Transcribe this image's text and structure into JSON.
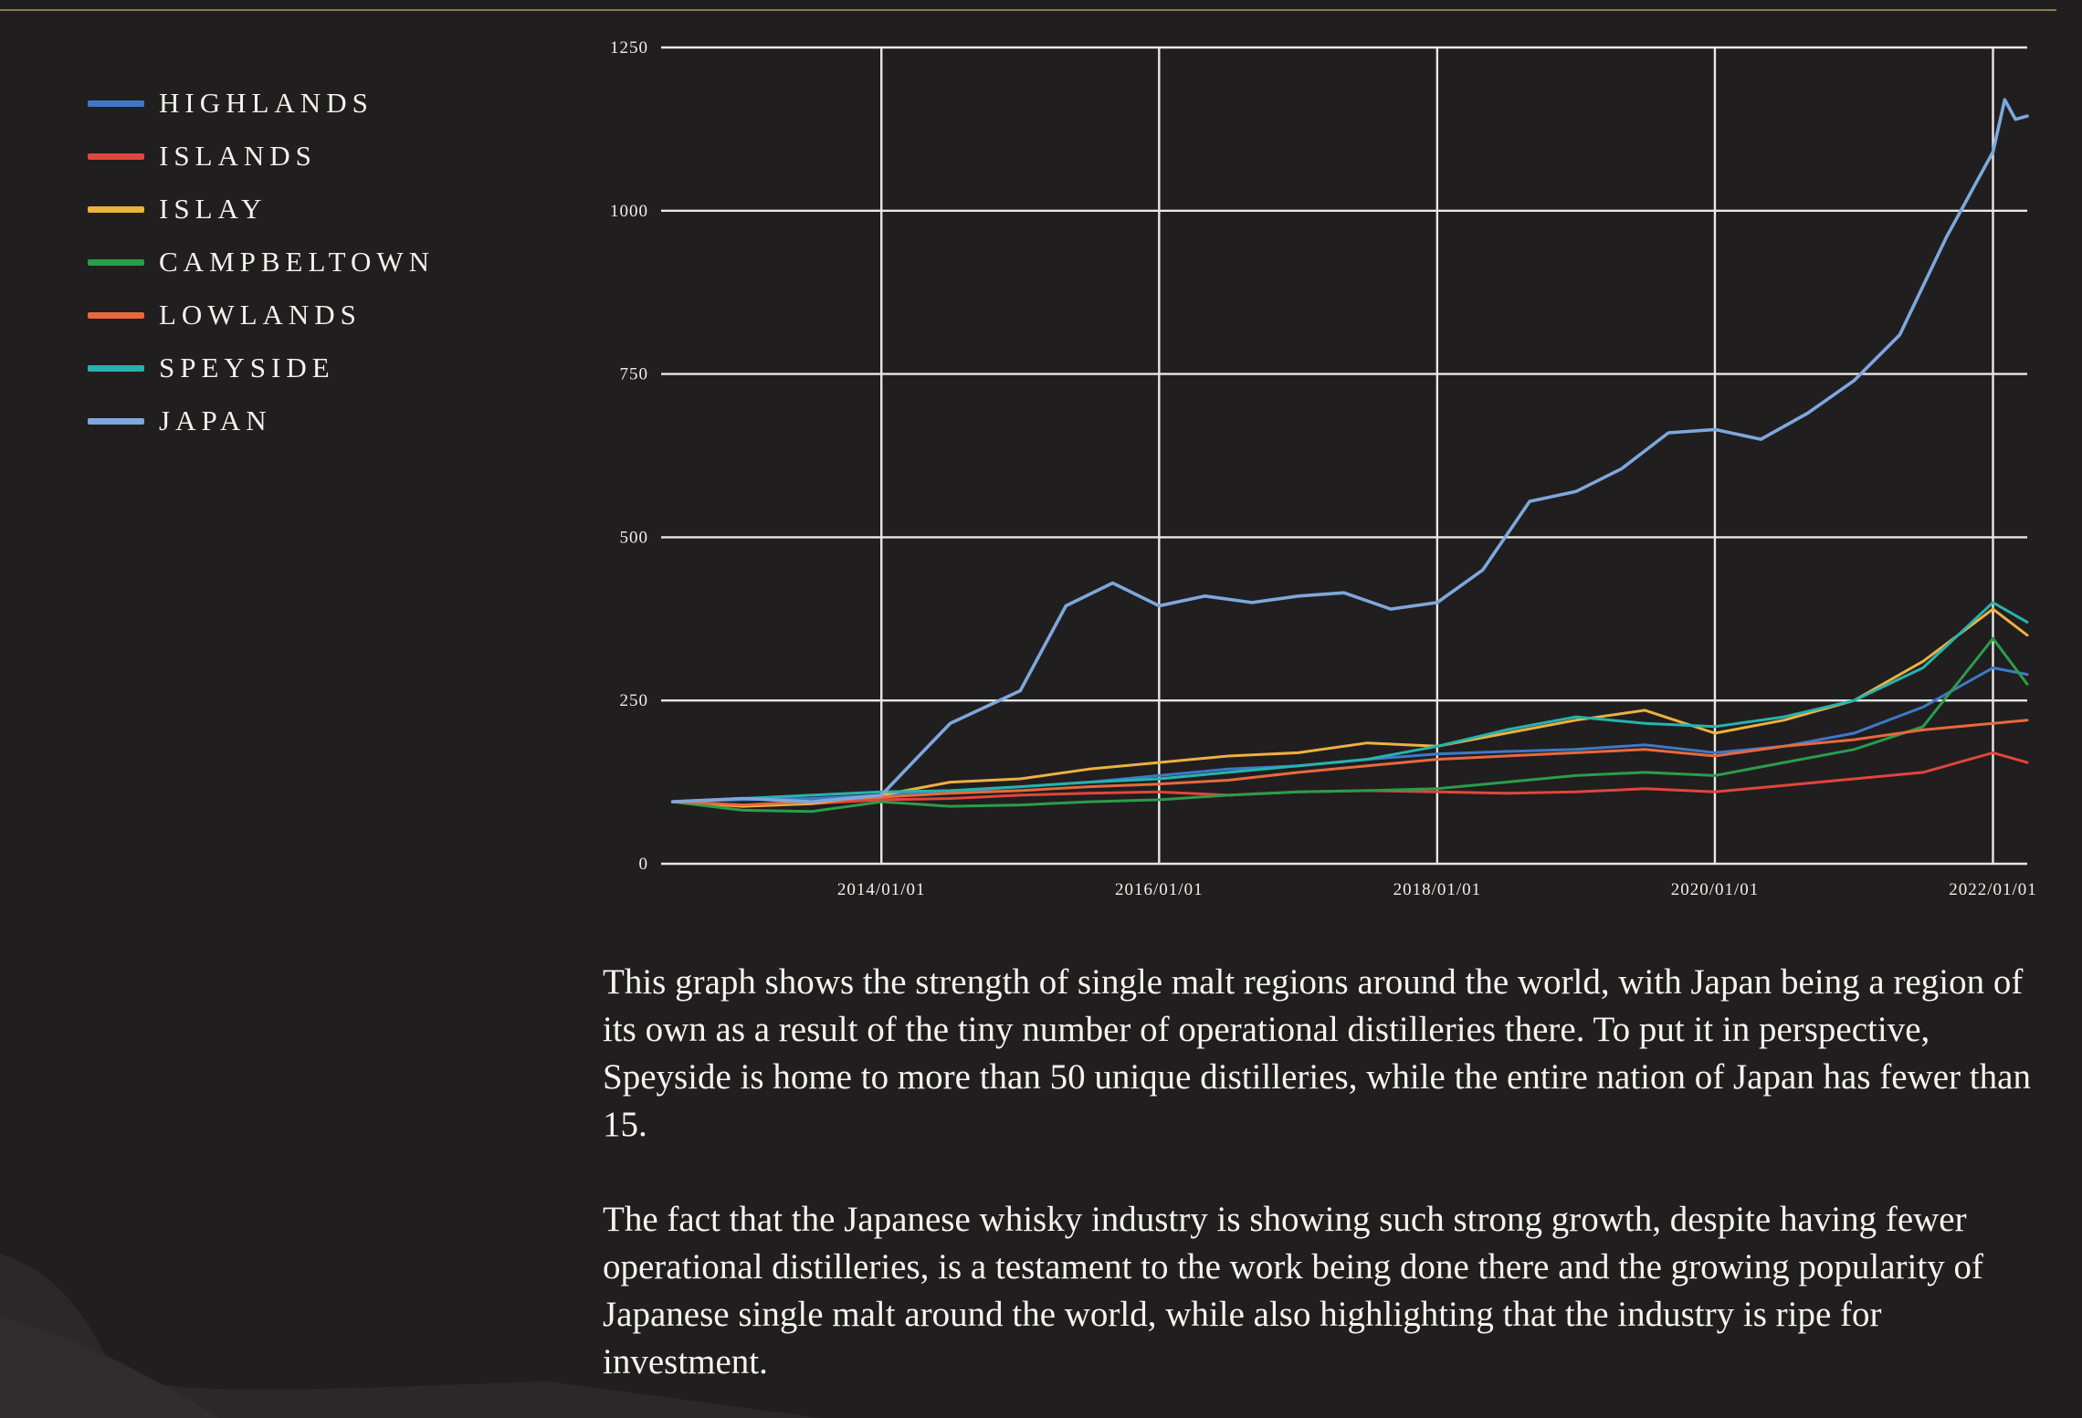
{
  "legend": [
    {
      "label": "HIGHLANDS",
      "color": "#3f78c9"
    },
    {
      "label": "ISLANDS",
      "color": "#e2453b"
    },
    {
      "label": "ISLAY",
      "color": "#eeb03f"
    },
    {
      "label": "CAMPBELTOWN",
      "color": "#2c9c4a"
    },
    {
      "label": "LOWLANDS",
      "color": "#e8693c"
    },
    {
      "label": "SPEYSIDE",
      "color": "#27b3ad"
    },
    {
      "label": "JAPAN",
      "color": "#7ea8dc"
    }
  ],
  "caption": {
    "p1": "This graph shows the strength of single malt regions around the world, with Japan being a region of its own as a result of the tiny number of operational distilleries there. To put it in perspective, Speyside is home to more than 50 unique distilleries, while the entire nation of Japan has fewer than 15.",
    "p2": "The fact that the Japanese whisky industry is showing such strong growth, despite having fewer operational distilleries, is a testament to the work being done there and the growing popularity of Japanese single malt around the world, while also highlighting that the industry is ripe for investment."
  },
  "chart_data": {
    "type": "line",
    "title": "",
    "xlabel": "",
    "ylabel": "",
    "ylim": [
      0,
      1250
    ],
    "yticks": [
      0,
      250,
      500,
      750,
      1000,
      1250
    ],
    "ytick_labels": [
      "0",
      "250",
      "500",
      "750",
      "1000",
      "1250"
    ],
    "xlim": [
      "2012-06-01",
      "2022-04-01"
    ],
    "xticks": [
      "2014-01-01",
      "2016-01-01",
      "2018-01-01",
      "2020-01-01",
      "2022-01-01"
    ],
    "xtick_labels": [
      "2014/01/01",
      "2016/01/01",
      "2018/01/01",
      "2020/01/01",
      "2022/01/01"
    ],
    "grid": true,
    "legend_position": "left",
    "series": [
      {
        "name": "HIGHLANDS",
        "color": "#3f78c9",
        "x": [
          "2012-07",
          "2013-01",
          "2013-07",
          "2014-01",
          "2014-07",
          "2015-01",
          "2015-07",
          "2016-01",
          "2016-07",
          "2017-01",
          "2017-07",
          "2018-01",
          "2018-07",
          "2019-01",
          "2019-07",
          "2020-01",
          "2020-07",
          "2021-01",
          "2021-07",
          "2022-01",
          "2022-04"
        ],
        "y": [
          95,
          98,
          100,
          105,
          110,
          118,
          125,
          135,
          145,
          150,
          160,
          168,
          172,
          175,
          182,
          170,
          180,
          200,
          240,
          300,
          290
        ]
      },
      {
        "name": "ISLANDS",
        "color": "#e2453b",
        "x": [
          "2012-07",
          "2013-01",
          "2013-07",
          "2014-01",
          "2014-07",
          "2015-01",
          "2015-07",
          "2016-01",
          "2016-07",
          "2017-01",
          "2017-07",
          "2018-01",
          "2018-07",
          "2019-01",
          "2019-07",
          "2020-01",
          "2020-07",
          "2021-01",
          "2021-07",
          "2022-01",
          "2022-04"
        ],
        "y": [
          95,
          90,
          92,
          98,
          100,
          105,
          108,
          110,
          105,
          110,
          112,
          110,
          108,
          110,
          115,
          110,
          120,
          130,
          140,
          170,
          155
        ]
      },
      {
        "name": "ISLAY",
        "color": "#eeb03f",
        "x": [
          "2012-07",
          "2013-01",
          "2013-07",
          "2014-01",
          "2014-07",
          "2015-01",
          "2015-07",
          "2016-01",
          "2016-07",
          "2017-01",
          "2017-07",
          "2018-01",
          "2018-07",
          "2019-01",
          "2019-07",
          "2020-01",
          "2020-07",
          "2021-01",
          "2021-07",
          "2022-01",
          "2022-04"
        ],
        "y": [
          95,
          88,
          92,
          105,
          125,
          130,
          145,
          155,
          165,
          170,
          185,
          180,
          200,
          220,
          235,
          200,
          220,
          250,
          310,
          390,
          350
        ]
      },
      {
        "name": "CAMPBELTOWN",
        "color": "#2c9c4a",
        "x": [
          "2012-07",
          "2013-01",
          "2013-07",
          "2014-01",
          "2014-07",
          "2015-01",
          "2015-07",
          "2016-01",
          "2016-07",
          "2017-01",
          "2017-07",
          "2018-01",
          "2018-07",
          "2019-01",
          "2019-07",
          "2020-01",
          "2020-07",
          "2021-01",
          "2021-07",
          "2022-01",
          "2022-04"
        ],
        "y": [
          95,
          82,
          80,
          95,
          88,
          90,
          95,
          98,
          105,
          110,
          112,
          115,
          125,
          135,
          140,
          135,
          155,
          175,
          210,
          345,
          275
        ]
      },
      {
        "name": "LOWLANDS",
        "color": "#e8693c",
        "x": [
          "2012-07",
          "2013-01",
          "2013-07",
          "2014-01",
          "2014-07",
          "2015-01",
          "2015-07",
          "2016-01",
          "2016-07",
          "2017-01",
          "2017-07",
          "2018-01",
          "2018-07",
          "2019-01",
          "2019-07",
          "2020-01",
          "2020-07",
          "2021-01",
          "2021-07",
          "2022-01",
          "2022-04"
        ],
        "y": [
          95,
          90,
          95,
          102,
          108,
          112,
          118,
          122,
          128,
          140,
          150,
          160,
          165,
          170,
          175,
          165,
          180,
          190,
          205,
          215,
          220
        ]
      },
      {
        "name": "SPEYSIDE",
        "color": "#27b3ad",
        "x": [
          "2012-07",
          "2013-01",
          "2013-07",
          "2014-01",
          "2014-07",
          "2015-01",
          "2015-07",
          "2016-01",
          "2016-07",
          "2017-01",
          "2017-07",
          "2018-01",
          "2018-07",
          "2019-01",
          "2019-07",
          "2020-01",
          "2020-07",
          "2021-01",
          "2021-07",
          "2022-01",
          "2022-04"
        ],
        "y": [
          95,
          100,
          105,
          110,
          112,
          118,
          125,
          130,
          140,
          150,
          160,
          180,
          205,
          225,
          215,
          210,
          225,
          250,
          300,
          400,
          370
        ]
      },
      {
        "name": "JAPAN",
        "color": "#7ea8dc",
        "x": [
          "2012-07",
          "2013-01",
          "2013-07",
          "2014-01",
          "2014-04",
          "2014-07",
          "2015-01",
          "2015-05",
          "2015-09",
          "2016-01",
          "2016-05",
          "2016-09",
          "2017-01",
          "2017-05",
          "2017-09",
          "2018-01",
          "2018-05",
          "2018-09",
          "2019-01",
          "2019-05",
          "2019-09",
          "2020-01",
          "2020-05",
          "2020-09",
          "2021-01",
          "2021-05",
          "2021-09",
          "2022-01",
          "2022-02",
          "2022-03",
          "2022-04"
        ],
        "y": [
          95,
          100,
          95,
          105,
          160,
          215,
          265,
          395,
          430,
          395,
          410,
          400,
          410,
          415,
          390,
          400,
          450,
          555,
          570,
          605,
          660,
          665,
          650,
          690,
          740,
          810,
          960,
          1090,
          1170,
          1140,
          1145
        ]
      }
    ]
  }
}
